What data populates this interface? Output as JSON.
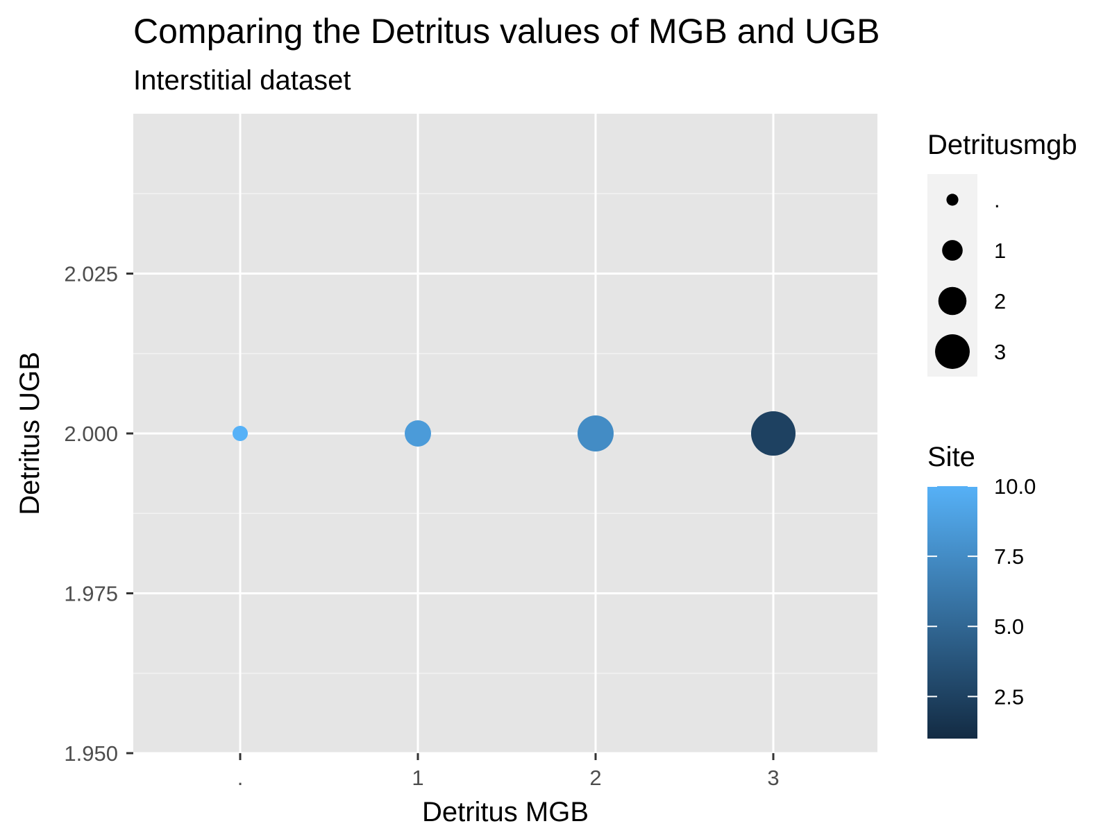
{
  "chart_data": {
    "type": "scatter",
    "title": "Comparing the Detritus values of MGB and UGB",
    "subtitle": "Interstitial dataset",
    "xlabel": "Detritus MGB",
    "ylabel": "Detritus UGB",
    "x_categories": [
      ".",
      "1",
      "2",
      "3"
    ],
    "ylim": [
      1.95,
      2.05
    ],
    "y_ticks": [
      "1.950",
      "1.975",
      "2.000",
      "2.025"
    ],
    "grid": true,
    "points": [
      {
        "x": ".",
        "y": 2.0,
        "size": ".",
        "site": 10.0
      },
      {
        "x": "1",
        "y": 2.0,
        "size": "1",
        "site": 8.5
      },
      {
        "x": "2",
        "y": 2.0,
        "size": "2",
        "site": 7.5
      },
      {
        "x": "3",
        "y": 2.0,
        "size": "3",
        "site": 2.5
      }
    ],
    "size_legend": {
      "title": "Detritusmgb",
      "labels": [
        ".",
        "1",
        "2",
        "3"
      ]
    },
    "color_legend": {
      "title": "Site",
      "range": [
        1.0,
        10.0
      ],
      "tick_labels": [
        "10.0",
        "7.5",
        "5.0",
        "2.5"
      ],
      "tick_values": [
        10.0,
        7.5,
        5.0,
        2.5
      ],
      "color_low": "#132B43",
      "color_high": "#56B1F7"
    },
    "legend_position": "right",
    "panel_color": "#e5e5e5",
    "grid_color": "#ffffff"
  }
}
